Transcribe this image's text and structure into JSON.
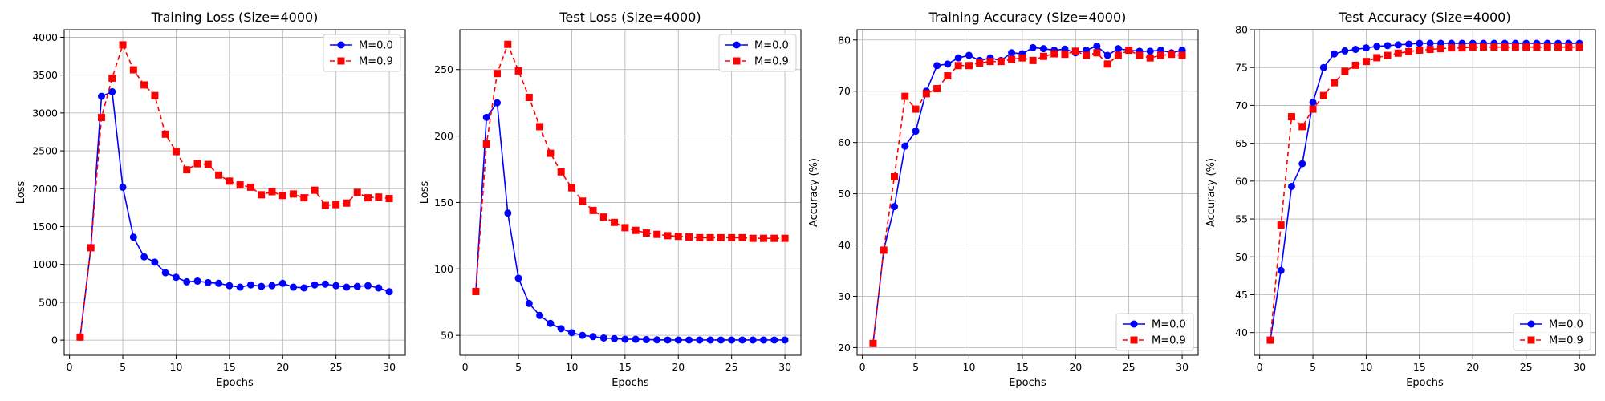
{
  "chart_data": [
    {
      "type": "line",
      "title": "Training Loss (Size=4000)",
      "xlabel": "Epochs",
      "ylabel": "Loss",
      "xlim": [
        -0.5,
        31.5
      ],
      "ylim": [
        -200,
        4100
      ],
      "xticks": [
        0,
        5,
        10,
        15,
        20,
        25,
        30
      ],
      "yticks": [
        0,
        500,
        1000,
        1500,
        2000,
        2500,
        3000,
        3500,
        4000
      ],
      "grid": true,
      "legend_position": "top-right",
      "x": [
        1,
        2,
        3,
        4,
        5,
        6,
        7,
        8,
        9,
        10,
        11,
        12,
        13,
        14,
        15,
        16,
        17,
        18,
        19,
        20,
        21,
        22,
        23,
        24,
        25,
        26,
        27,
        28,
        29,
        30
      ],
      "series": [
        {
          "name": "M=0.0",
          "color": "#0000ff",
          "style": "solid",
          "marker": "circle",
          "values": [
            40,
            1220,
            3220,
            3280,
            2020,
            1360,
            1100,
            1030,
            890,
            830,
            770,
            780,
            760,
            750,
            720,
            700,
            730,
            710,
            720,
            750,
            700,
            690,
            730,
            740,
            720,
            700,
            710,
            720,
            690,
            640
          ]
        },
        {
          "name": "M=0.9",
          "color": "#ff0000",
          "style": "dashed",
          "marker": "square",
          "values": [
            40,
            1220,
            2940,
            3460,
            3900,
            3570,
            3370,
            3230,
            2720,
            2490,
            2250,
            2330,
            2320,
            2180,
            2100,
            2050,
            2020,
            1920,
            1960,
            1910,
            1930,
            1880,
            1980,
            1780,
            1790,
            1810,
            1950,
            1880,
            1890,
            1870
          ]
        }
      ]
    },
    {
      "type": "line",
      "title": "Test Loss (Size=4000)",
      "xlabel": "Epochs",
      "ylabel": "Loss",
      "xlim": [
        -0.5,
        31.5
      ],
      "ylim": [
        35,
        280
      ],
      "xticks": [
        0,
        5,
        10,
        15,
        20,
        25,
        30
      ],
      "yticks": [
        50,
        100,
        150,
        200,
        250
      ],
      "grid": true,
      "legend_position": "top-right",
      "x": [
        1,
        2,
        3,
        4,
        5,
        6,
        7,
        8,
        9,
        10,
        11,
        12,
        13,
        14,
        15,
        16,
        17,
        18,
        19,
        20,
        21,
        22,
        23,
        24,
        25,
        26,
        27,
        28,
        29,
        30
      ],
      "series": [
        {
          "name": "M=0.0",
          "color": "#0000ff",
          "style": "solid",
          "marker": "circle",
          "values": [
            83,
            214,
            225,
            142,
            93,
            74,
            65,
            59,
            55,
            52,
            50,
            49,
            48,
            47.5,
            47,
            47,
            46.8,
            46.6,
            46.5,
            46.5,
            46.5,
            46.5,
            46.5,
            46.5,
            46.5,
            46.5,
            46.5,
            46.5,
            46.5,
            46.5
          ]
        },
        {
          "name": "M=0.9",
          "color": "#ff0000",
          "style": "dashed",
          "marker": "square",
          "values": [
            83,
            194,
            247,
            269,
            249,
            229,
            207,
            187,
            173,
            161,
            151,
            144,
            139,
            135,
            131,
            129,
            127,
            126,
            125,
            124.5,
            124,
            123.5,
            123.5,
            123.5,
            123.5,
            123.5,
            123,
            123,
            123,
            123
          ]
        }
      ]
    },
    {
      "type": "line",
      "title": "Training Accuracy (Size=4000)",
      "xlabel": "Epochs",
      "ylabel": "Accuracy (%)",
      "xlim": [
        -0.5,
        31.5
      ],
      "ylim": [
        18.5,
        82
      ],
      "xticks": [
        0,
        5,
        10,
        15,
        20,
        25,
        30
      ],
      "yticks": [
        20,
        30,
        40,
        50,
        60,
        70,
        80
      ],
      "grid": true,
      "legend_position": "bottom-right",
      "x": [
        1,
        2,
        3,
        4,
        5,
        6,
        7,
        8,
        9,
        10,
        11,
        12,
        13,
        14,
        15,
        16,
        17,
        18,
        19,
        20,
        21,
        22,
        23,
        24,
        25,
        26,
        27,
        28,
        29,
        30
      ],
      "series": [
        {
          "name": "M=0.0",
          "color": "#0000ff",
          "style": "solid",
          "marker": "circle",
          "values": [
            20.8,
            39.0,
            47.5,
            59.3,
            62.2,
            70.0,
            75.0,
            75.3,
            76.5,
            77.0,
            76.0,
            76.5,
            76.0,
            77.5,
            77.3,
            78.5,
            78.3,
            78.0,
            78.2,
            77.5,
            78.0,
            78.8,
            77.0,
            78.3,
            78.0,
            77.8,
            77.8,
            78.0,
            77.5,
            78.0
          ]
        },
        {
          "name": "M=0.9",
          "color": "#ff0000",
          "style": "dashed",
          "marker": "square",
          "values": [
            20.8,
            39.0,
            53.3,
            69.0,
            66.5,
            69.5,
            70.5,
            73.0,
            75.0,
            75.0,
            75.5,
            75.8,
            75.8,
            76.2,
            76.5,
            76.0,
            76.8,
            77.3,
            77.2,
            77.8,
            77.0,
            77.5,
            75.3,
            77.0,
            78.0,
            77.0,
            76.5,
            77.0,
            77.2,
            77.0
          ]
        }
      ]
    },
    {
      "type": "line",
      "title": "Test Accuracy (Size=4000)",
      "xlabel": "Epochs",
      "ylabel": "Accuracy (%)",
      "xlim": [
        -0.5,
        31.5
      ],
      "ylim": [
        37.0,
        80.0
      ],
      "xticks": [
        0,
        5,
        10,
        15,
        20,
        25,
        30
      ],
      "yticks": [
        40,
        45,
        50,
        55,
        60,
        65,
        70,
        75,
        80
      ],
      "grid": true,
      "legend_position": "bottom-right",
      "x": [
        1,
        2,
        3,
        4,
        5,
        6,
        7,
        8,
        9,
        10,
        11,
        12,
        13,
        14,
        15,
        16,
        17,
        18,
        19,
        20,
        21,
        22,
        23,
        24,
        25,
        26,
        27,
        28,
        29,
        30
      ],
      "series": [
        {
          "name": "M=0.0",
          "color": "#0000ff",
          "style": "solid",
          "marker": "circle",
          "values": [
            39.0,
            48.2,
            59.3,
            62.3,
            70.4,
            75.0,
            76.8,
            77.2,
            77.4,
            77.6,
            77.8,
            77.9,
            78.0,
            78.1,
            78.2,
            78.2,
            78.2,
            78.2,
            78.2,
            78.2,
            78.2,
            78.2,
            78.2,
            78.2,
            78.2,
            78.2,
            78.2,
            78.2,
            78.2,
            78.2
          ]
        },
        {
          "name": "M=0.9",
          "color": "#ff0000",
          "style": "dashed",
          "marker": "square",
          "values": [
            39.0,
            54.2,
            68.5,
            67.2,
            69.5,
            71.3,
            73.0,
            74.5,
            75.3,
            75.8,
            76.3,
            76.6,
            76.9,
            77.1,
            77.3,
            77.4,
            77.5,
            77.6,
            77.6,
            77.7,
            77.7,
            77.7,
            77.7,
            77.7,
            77.7,
            77.7,
            77.7,
            77.7,
            77.7,
            77.7
          ]
        }
      ]
    }
  ]
}
